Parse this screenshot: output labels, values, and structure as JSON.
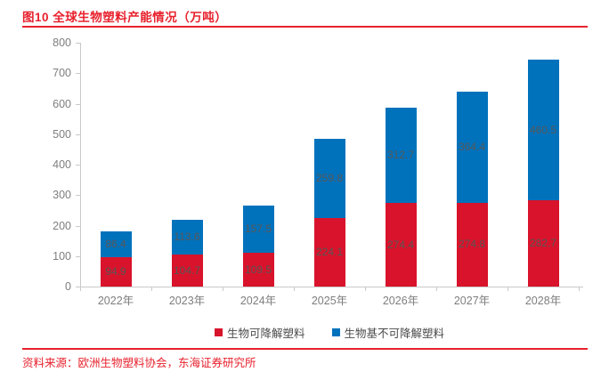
{
  "figure": {
    "title": "图10  全球生物塑料产能情况（万吨）",
    "source": "资料来源：欧洲生物塑料协会，东海证券研究所"
  },
  "colors": {
    "accent_red": "#E8212D",
    "bar_red": "#D8132B",
    "bar_blue": "#0072BC",
    "axis_gray": "#C9C9C9",
    "tick_label_gray": "#7E7E7E",
    "value_label_gray": "#595757"
  },
  "chart_data": {
    "type": "bar",
    "stacked": true,
    "title": "图10  全球生物塑料产能情况（万吨）",
    "xlabel": "",
    "ylabel": "",
    "categories": [
      "2022年",
      "2023年",
      "2024年",
      "2025年",
      "2026年",
      "2027年",
      "2028年"
    ],
    "series": [
      {
        "name": "生物可降解塑料",
        "color": "#D8132B",
        "values": [
          94.9,
          104.7,
          109.5,
          224.1,
          274.4,
          274.8,
          282.7
        ]
      },
      {
        "name": "生物基不可降解塑料",
        "color": "#0072BC",
        "values": [
          86.4,
          113.6,
          157.5,
          259.8,
          312.7,
          364.4,
          460.5
        ]
      }
    ],
    "ylim": [
      0,
      800
    ],
    "ytick_step": 100,
    "grid": false,
    "value_labels": true,
    "legend_position": "bottom"
  }
}
